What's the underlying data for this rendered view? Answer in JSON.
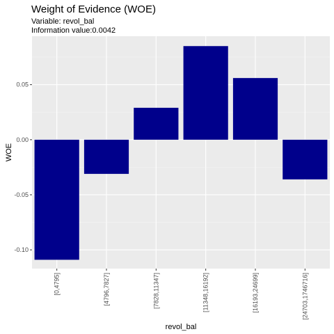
{
  "chart_data": {
    "type": "bar",
    "title": "Weight of Evidence (WOE)",
    "subtitle": [
      "Variable: revol_bal",
      "Information value:0.0042"
    ],
    "xlabel": "revol_bal",
    "ylabel": "WOE",
    "categories": [
      "[0,4795]",
      "[4796,7827]",
      "[7828,11347]",
      "[11348,16192]",
      "[16193,24699]",
      "[24703,1746716]"
    ],
    "values": [
      -0.109,
      -0.031,
      0.029,
      0.085,
      0.056,
      -0.036
    ],
    "ylim": [
      -0.117,
      0.094
    ],
    "yticks": [
      -0.1,
      -0.05,
      0.0,
      0.05
    ],
    "ytick_labels": [
      "-0.10",
      "-0.05",
      "0.00",
      "0.05"
    ],
    "grid": true,
    "colors": {
      "bar": "#00008b",
      "panel": "#ebebeb",
      "grid_major": "#ffffff"
    }
  }
}
